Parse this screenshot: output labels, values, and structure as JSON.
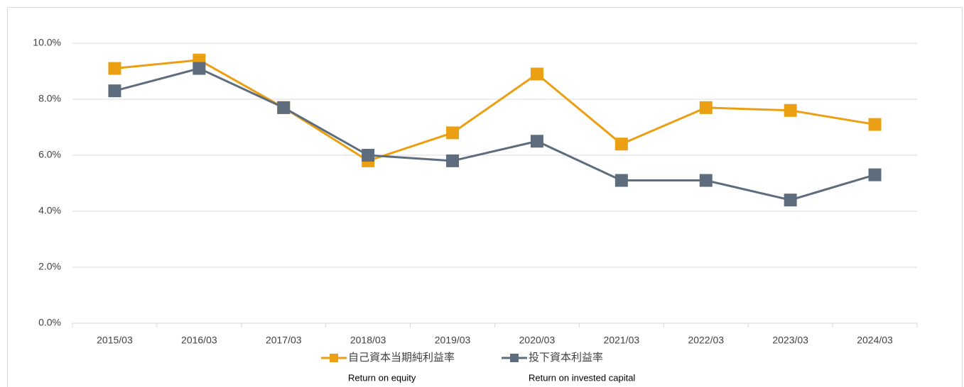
{
  "chart_data": {
    "type": "line",
    "categories": [
      "2015/03",
      "2016/03",
      "2017/03",
      "2018/03",
      "2019/03",
      "2020/03",
      "2021/03",
      "2022/03",
      "2023/03",
      "2024/03"
    ],
    "series": [
      {
        "name": "自己資本当期純利益率",
        "subtitle": "Return on equity",
        "color": "#eb9f12",
        "values": [
          9.1,
          9.4,
          7.7,
          5.8,
          6.8,
          8.9,
          6.4,
          7.7,
          7.6,
          7.1
        ]
      },
      {
        "name": "投下資本利益率",
        "subtitle": "Return on invested capital",
        "color": "#5d6d7e",
        "values": [
          8.3,
          9.1,
          7.7,
          6.0,
          5.8,
          6.5,
          5.1,
          5.1,
          4.4,
          5.3
        ]
      }
    ],
    "ylim": [
      0,
      10
    ],
    "yticks": [
      {
        "value": 0,
        "label": "0.0%"
      },
      {
        "value": 2,
        "label": "2.0%"
      },
      {
        "value": 4,
        "label": "4.0%"
      },
      {
        "value": 6,
        "label": "6.0%"
      },
      {
        "value": 8,
        "label": "8.0%"
      },
      {
        "value": 10,
        "label": "10.0%"
      }
    ],
    "grid": true
  }
}
